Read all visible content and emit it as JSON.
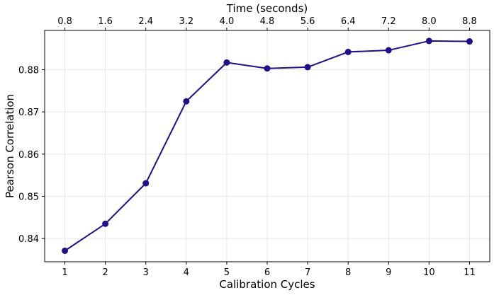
{
  "chart_data": {
    "type": "line",
    "xlabel": "Calibration Cycles",
    "ylabel": "Pearson Correlation",
    "top_xlabel": "Time (seconds)",
    "x": [
      1,
      2,
      3,
      4,
      5,
      6,
      7,
      8,
      9,
      10,
      11
    ],
    "series": [
      {
        "name": "Pearson Correlation",
        "color": "#1f0f8a",
        "values": [
          0.8371,
          0.8435,
          0.8531,
          0.8725,
          0.8817,
          0.8803,
          0.8806,
          0.8842,
          0.8846,
          0.8868,
          0.8867
        ]
      }
    ],
    "xlim": [
      0.5,
      11.5
    ],
    "ylim": [
      0.8345,
      0.8893
    ],
    "xticks": [
      "1",
      "2",
      "3",
      "4",
      "5",
      "6",
      "7",
      "8",
      "9",
      "10",
      "11"
    ],
    "yticks": [
      0.84,
      0.85,
      0.86,
      0.87,
      0.88
    ],
    "ytick_labels": [
      "0.84",
      "0.85",
      "0.86",
      "0.87",
      "0.88"
    ],
    "top_xticks": [
      "0.8",
      "1.6",
      "2.4",
      "3.2",
      "4.0",
      "4.8",
      "5.6",
      "6.4",
      "7.2",
      "8.0",
      "8.8"
    ],
    "grid": true
  }
}
